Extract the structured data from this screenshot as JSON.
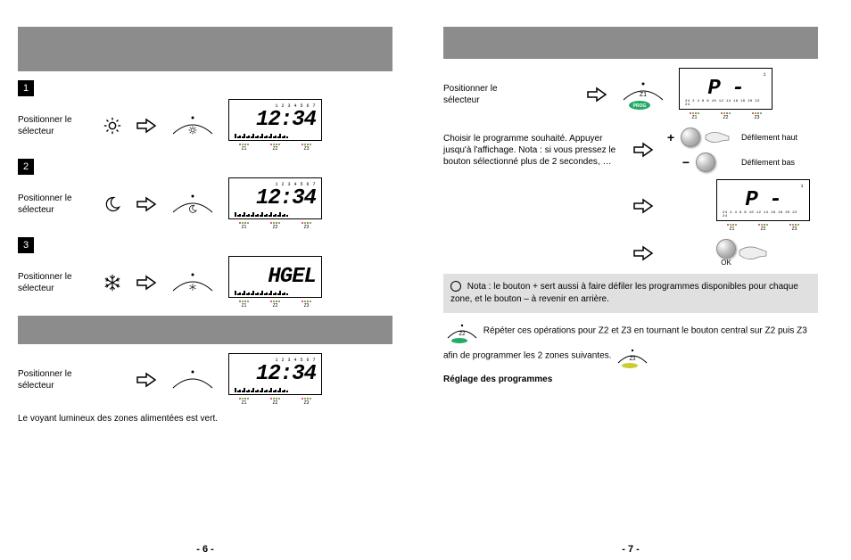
{
  "pageLeft": {
    "pageNumber": "- 6 -",
    "section1": "",
    "rows": [
      {
        "step": "1",
        "text": "Positionner le sélecteur",
        "lcdMain": "12:34",
        "lcdDays": "1 2 3 4 5 6 7",
        "iconName": "sun-icon",
        "dialIconName": "sun-icon"
      },
      {
        "step": "2",
        "text": "Positionner le sélecteur",
        "lcdMain": "12:34",
        "lcdDays": "1 2 3 4 5 6 7",
        "iconName": "moon-icon",
        "dialIconName": "moon-icon"
      },
      {
        "step": "3",
        "text": "Positionner le sélecteur",
        "lcdMain": "HGEL",
        "lcdDays": "",
        "iconName": "snowflake-icon",
        "dialIconName": "snowflake-icon"
      }
    ],
    "section2": "",
    "autoRow": {
      "text": "Positionner le sélecteur",
      "lcdMain": "12:34",
      "lcdDays": "1 2 3 4 5 6 7",
      "dialIconName": "auto-icon"
    },
    "footnote": "Le voyant lumineux des zones alimentées est vert.",
    "ledLabels": [
      "Z1",
      "Z2",
      "Z3"
    ]
  },
  "pageRight": {
    "pageNumber": "- 7 -",
    "step1": {
      "text": "Positionner le sélecteur",
      "lcdMain": "P -",
      "lcdSub": "1",
      "progLabel": "PROG",
      "dialZoneLabel": "Z1"
    },
    "step2": {
      "text": "Choisir le programme souhaité. Appuyer jusqu'à l'affichage.\nNota : si vous pressez le bouton sélectionné plus de 2 secondes, …",
      "plus": "Défilement haut",
      "minus": "Défilement bas"
    },
    "step3": {
      "text": "",
      "lcdMain": "P -",
      "lcdSub": "1",
      "progLabel": ""
    },
    "step4": {
      "text": "",
      "okLabel": "OK"
    },
    "note": "Nota : le bouton + sert aussi à faire défiler les programmes disponibles pour chaque zone, et le bouton – à revenir en arrière.",
    "instruction": "Répéter ces opérations pour Z2 et Z3 en tournant le bouton central sur Z2 puis Z3 afin de programmer les 2 zones suivantes.",
    "instruction_bold": "Réglage des programmes",
    "z2Label": "Z2",
    "z3Label": "Z3",
    "ledLabels": [
      "Z1",
      "Z2",
      "Z3"
    ],
    "timelineLabels": "24 2 4 6 8 10 12 14 16 18 20 22 24"
  },
  "colors": {
    "headerBar": "#8c8c8c",
    "noteBg": "#e0e0e0",
    "ledRed": "#c33",
    "ledGreen": "#3a3"
  }
}
